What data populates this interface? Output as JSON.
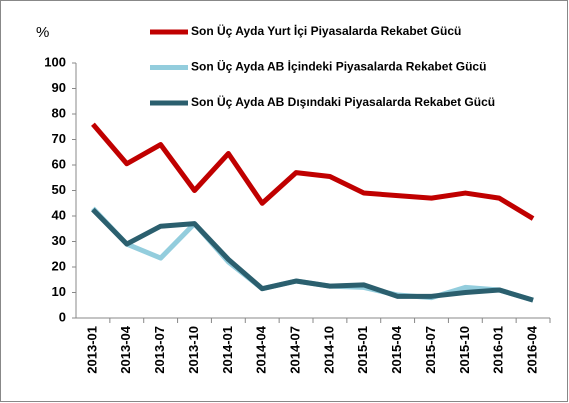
{
  "chart_data": {
    "type": "line",
    "y_label": "%",
    "categories": [
      "2013-01",
      "2013-04",
      "2013-07",
      "2013-10",
      "2014-01",
      "2014-04",
      "2014-07",
      "2014-10",
      "2015-01",
      "2015-04",
      "2015-07",
      "2015-10",
      "2016-01",
      "2016-04"
    ],
    "series": [
      {
        "name": "Son Üç Ayda Yurt İçi Piyasalarda Rekabet Gücü",
        "color": "#c00000",
        "values": [
          76,
          60.5,
          68,
          50,
          64.5,
          45,
          57,
          55.5,
          49,
          48,
          47,
          49,
          47,
          39
        ]
      },
      {
        "name": "Son Üç Ayda AB İçindeki Piyasalarda Rekabet Gücü",
        "color": "#93cddd",
        "values": [
          43,
          29,
          23.5,
          37,
          22,
          11.5,
          14.5,
          12.5,
          12,
          9,
          8,
          12,
          11,
          7
        ]
      },
      {
        "name": "Son Üç Ayda AB Dışındaki Piyasalarda Rekabet Gücü",
        "color": "#2b5f6e",
        "values": [
          42.5,
          29,
          36,
          37,
          23,
          11.5,
          14.5,
          12.5,
          13,
          8.5,
          8.5,
          10,
          11,
          7
        ]
      }
    ],
    "ylim": [
      0,
      100
    ],
    "yticks": [
      0,
      10,
      20,
      30,
      40,
      50,
      60,
      70,
      80,
      90,
      100
    ],
    "grid": false
  }
}
